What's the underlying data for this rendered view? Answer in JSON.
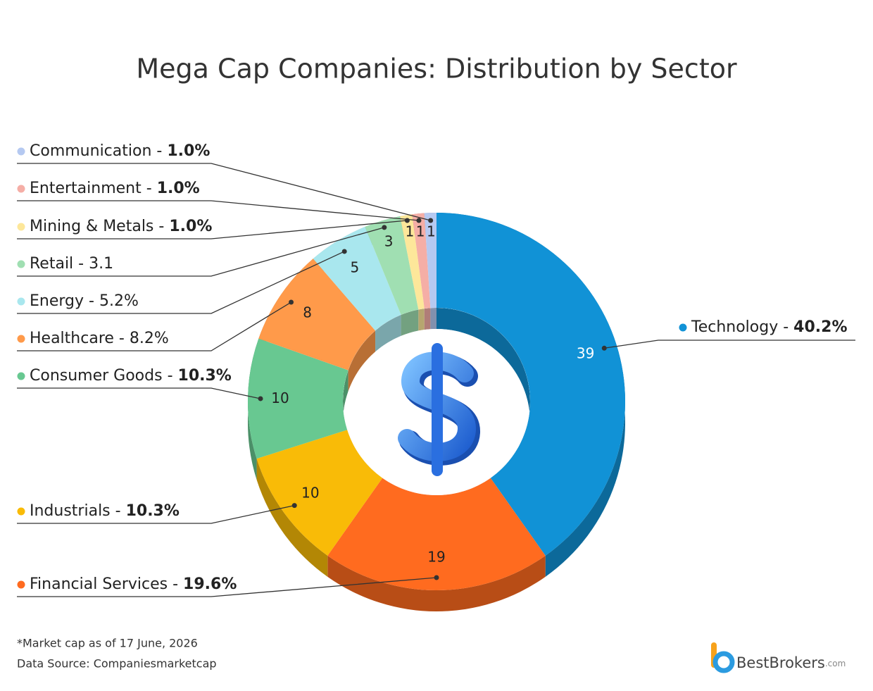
{
  "chart_data": {
    "type": "donut",
    "title": "Mega Cap Companies: Distribution by Sector",
    "categories": [
      "Technology",
      "Financial Services",
      "Industrials",
      "Consumer Goods",
      "Healthcare",
      "Energy",
      "Retail",
      "Mining & Metals",
      "Entertainment",
      "Communication"
    ],
    "values": [
      39,
      19,
      10,
      10,
      8,
      5,
      3,
      1,
      1,
      1
    ],
    "shares": [
      {
        "value": 40.2,
        "label": "40.2%"
      },
      {
        "value": 19.6,
        "label": "19.6%"
      },
      {
        "value": 10.3,
        "label": "10.3%"
      },
      {
        "value": 10.3,
        "label": "10.3%"
      },
      {
        "value": 8.2,
        "label": "8.2%"
      },
      {
        "value": 5.2,
        "label": "5.2%"
      },
      3.1,
      {
        "value": 1,
        "label": "1.0%"
      },
      {
        "value": 1,
        "label": "1.0%"
      },
      {
        "value": 1,
        "label": "1.0%"
      }
    ],
    "colors": [
      "#1192d6",
      "#ff6b1f",
      "#f9bb07",
      "#68c891",
      "#ff9a4a",
      "#a9e7ee",
      "#a0dfb2",
      "#fde79a",
      "#f5aea6",
      "#b5c9f1"
    ],
    "legend_separator": " - "
  },
  "footnote": "*Market cap as of 17 June, 2026",
  "source": "Data Source: Companiesmarketcap",
  "logo": {
    "name": "BestBrokers",
    "suffix": ".com"
  }
}
